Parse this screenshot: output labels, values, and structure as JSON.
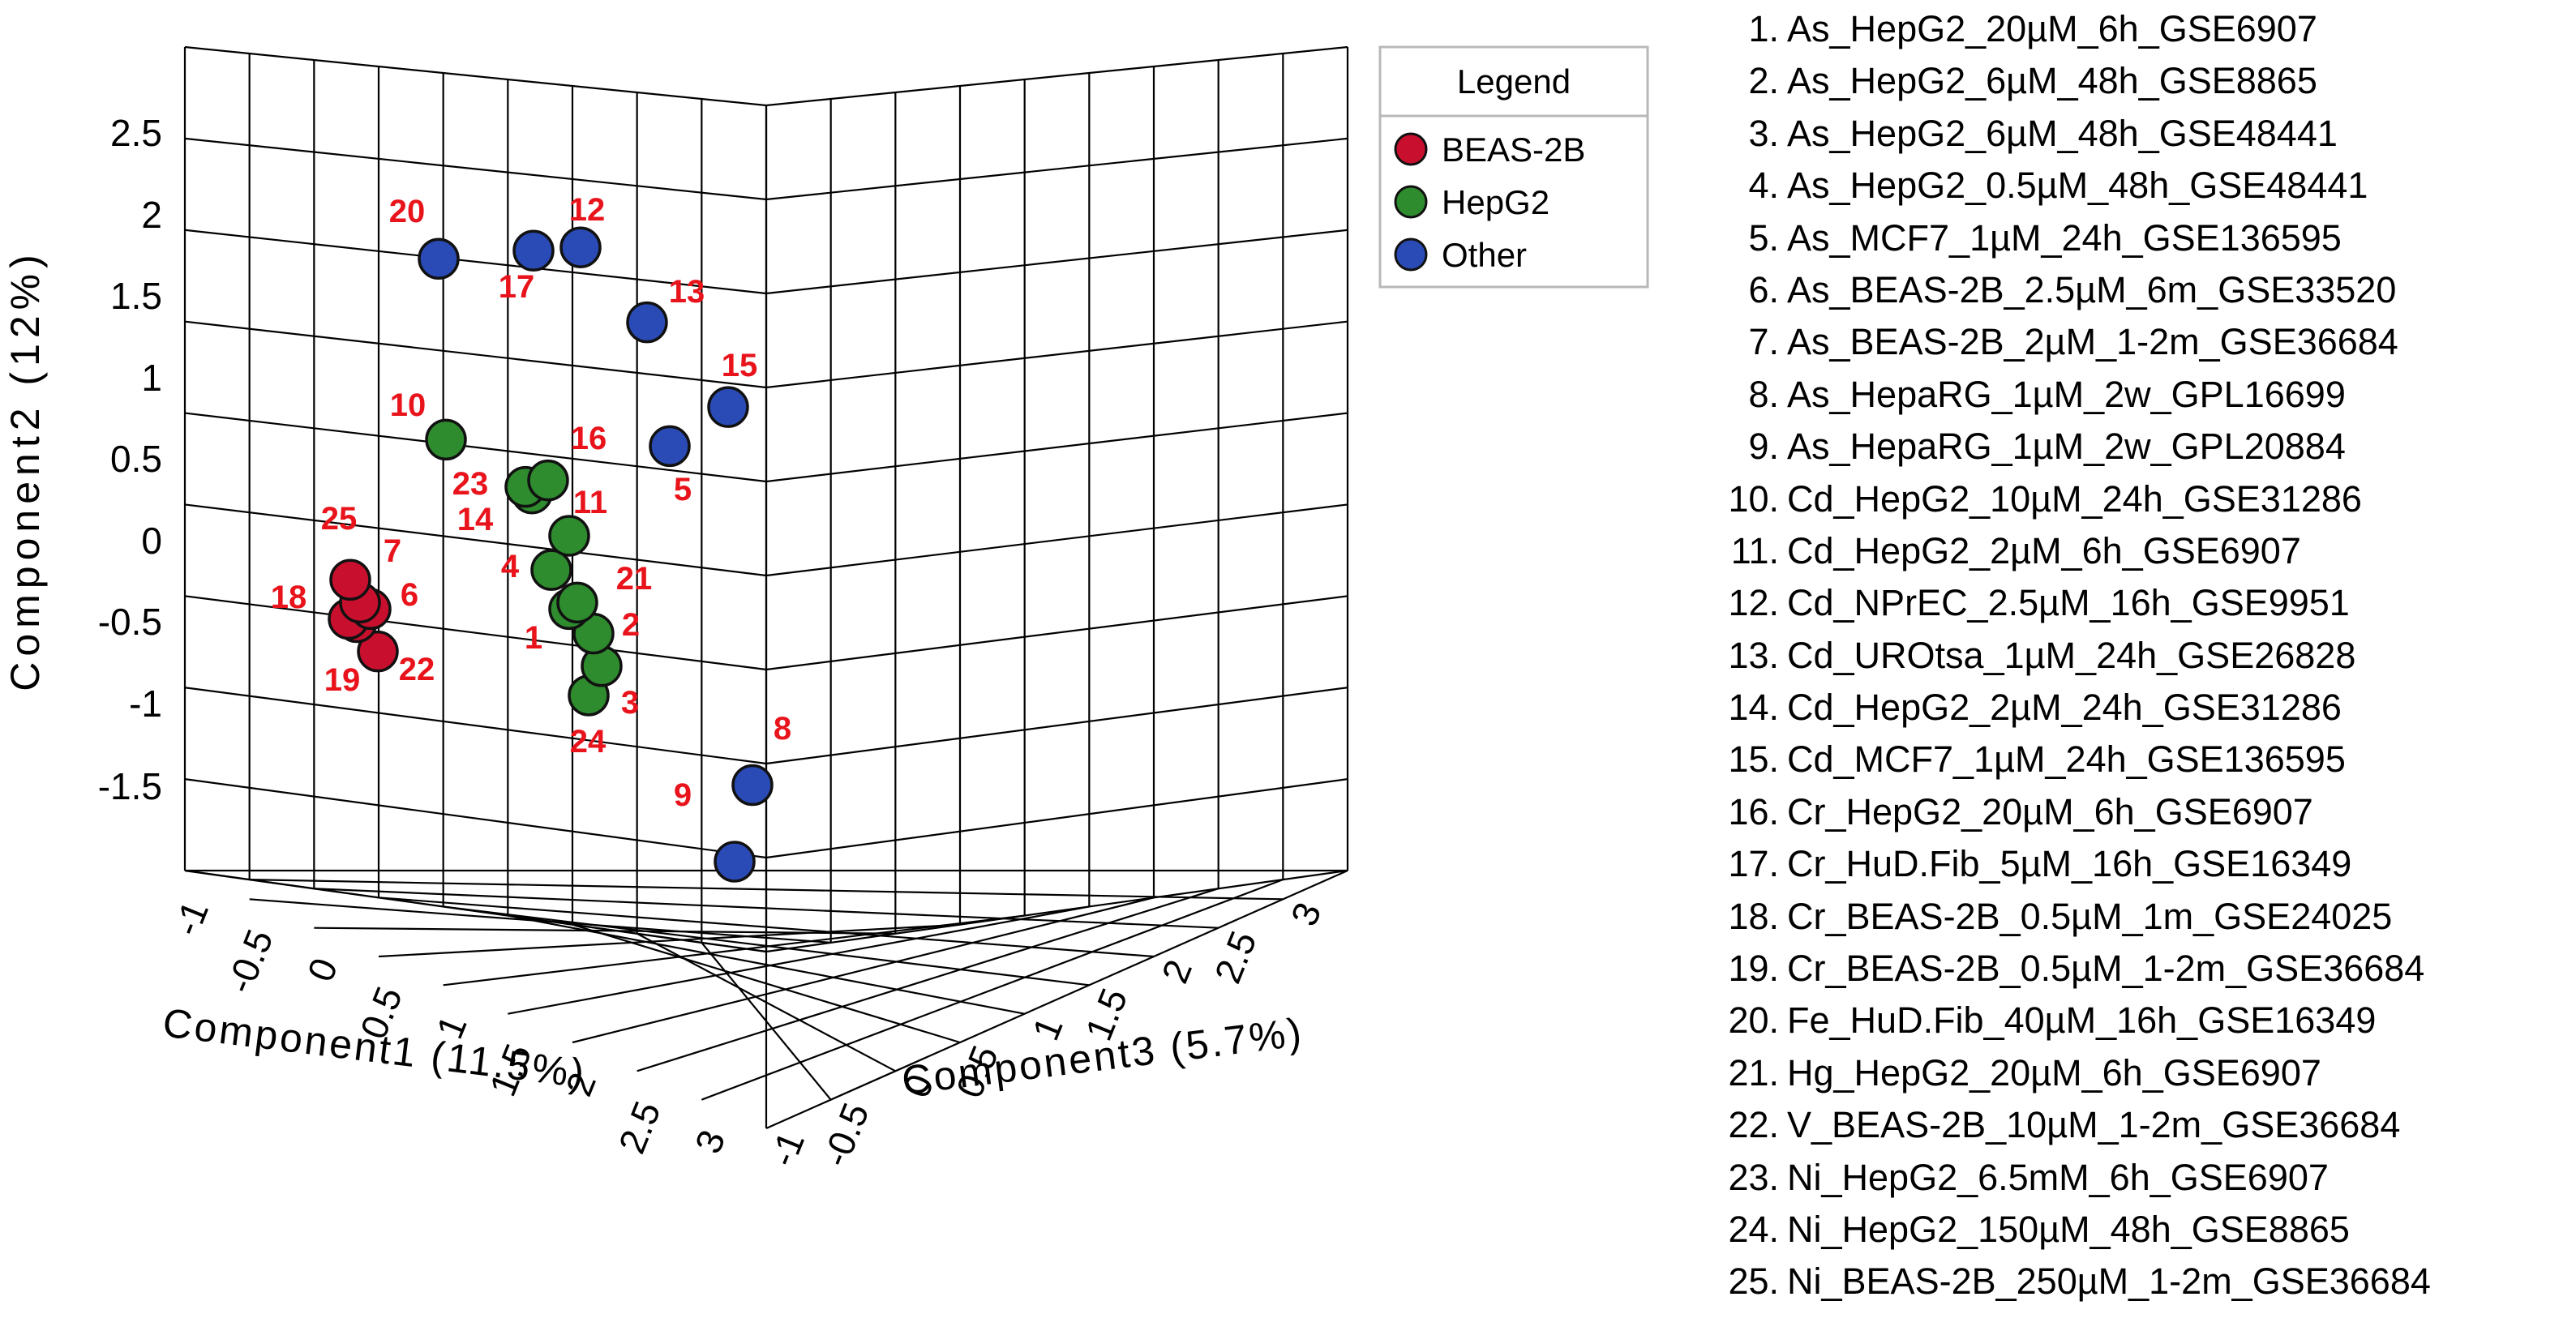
{
  "chart_data": {
    "type": "scatter",
    "projection": "3d",
    "title": "",
    "axes": {
      "x": {
        "label": "Component1 (11.5%)",
        "ticks": [
          "-1",
          "-0.5",
          "0",
          "0.5",
          "1",
          "1.5",
          "2",
          "2.5",
          "3"
        ]
      },
      "y": {
        "label": "Component2 (12%)",
        "ticks": [
          "-1.5",
          "-1",
          "-0.5",
          "0",
          "0.5",
          "1",
          "1.5",
          "2",
          "2.5"
        ]
      },
      "z": {
        "label": "Component3 (5.7%)",
        "ticks": [
          "-1",
          "-0.5",
          "0",
          "0.5",
          "1",
          "1.5",
          "2",
          "2.5",
          "3"
        ]
      }
    },
    "legend": {
      "title": "Legend",
      "placement": "top-right",
      "entries": [
        {
          "name": "BEAS-2B",
          "color": "#c8102e"
        },
        {
          "name": "HepG2",
          "color": "#2e8b2e"
        },
        {
          "name": "Other",
          "color": "#2a4bb5"
        }
      ]
    },
    "points": [
      {
        "id": "1",
        "group": "HepG2",
        "y": -0.42
      },
      {
        "id": "2",
        "group": "HepG2",
        "y": -0.57
      },
      {
        "id": "3",
        "group": "HepG2",
        "y": -0.77
      },
      {
        "id": "4",
        "group": "HepG2",
        "y": -0.18
      },
      {
        "id": "5",
        "group": "Other",
        "y": 0.58
      },
      {
        "id": "6",
        "group": "BEAS-2B",
        "y": -0.42
      },
      {
        "id": "7",
        "group": "BEAS-2B",
        "y": -0.38
      },
      {
        "id": "8",
        "group": "Other",
        "y": -1.5
      },
      {
        "id": "9",
        "group": "Other",
        "y": -1.97
      },
      {
        "id": "10",
        "group": "HepG2",
        "y": 0.62
      },
      {
        "id": "11",
        "group": "HepG2",
        "y": 0.03
      },
      {
        "id": "12",
        "group": "Other",
        "y": 1.8
      },
      {
        "id": "13",
        "group": "Other",
        "y": 1.34
      },
      {
        "id": "14",
        "group": "HepG2",
        "y": 0.29
      },
      {
        "id": "15",
        "group": "Other",
        "y": 0.82
      },
      {
        "id": "16",
        "group": "HepG2",
        "y": 0.37
      },
      {
        "id": "17",
        "group": "Other",
        "y": 1.78
      },
      {
        "id": "18",
        "group": "BEAS-2B",
        "y": -0.48
      },
      {
        "id": "19",
        "group": "BEAS-2B",
        "y": -0.5
      },
      {
        "id": "20",
        "group": "Other",
        "y": 1.73
      },
      {
        "id": "21",
        "group": "HepG2",
        "y": -0.38
      },
      {
        "id": "22",
        "group": "BEAS-2B",
        "y": -0.68
      },
      {
        "id": "23",
        "group": "HepG2",
        "y": 0.33
      },
      {
        "id": "24",
        "group": "HepG2",
        "y": -0.95
      },
      {
        "id": "25",
        "group": "BEAS-2B",
        "y": -0.24
      }
    ]
  },
  "sample_list": [
    {
      "num": "1.",
      "name": "As_HepG2_20µM_6h_GSE6907"
    },
    {
      "num": "2.",
      "name": "As_HepG2_6µM_48h_GSE8865"
    },
    {
      "num": "3.",
      "name": "As_HepG2_6µM_48h_GSE48441"
    },
    {
      "num": "4.",
      "name": "As_HepG2_0.5µM_48h_GSE48441"
    },
    {
      "num": "5.",
      "name": "As_MCF7_1µM_24h_GSE136595"
    },
    {
      "num": "6.",
      "name": "As_BEAS-2B_2.5µM_6m_GSE33520"
    },
    {
      "num": "7.",
      "name": "As_BEAS-2B_2µM_1-2m_GSE36684"
    },
    {
      "num": "8.",
      "name": "As_HepaRG_1µM_2w_GPL16699"
    },
    {
      "num": "9.",
      "name": "As_HepaRG_1µM_2w_GPL20884"
    },
    {
      "num": "10.",
      "name": "Cd_HepG2_10µM_24h_GSE31286"
    },
    {
      "num": "11.",
      "name": "Cd_HepG2_2µM_6h_GSE6907"
    },
    {
      "num": "12.",
      "name": "Cd_NPrEC_2.5µM_16h_GSE9951"
    },
    {
      "num": "13.",
      "name": "Cd_UROtsa_1µM_24h_GSE26828"
    },
    {
      "num": "14.",
      "name": "Cd_HepG2_2µM_24h_GSE31286"
    },
    {
      "num": "15.",
      "name": "Cd_MCF7_1µM_24h_GSE136595"
    },
    {
      "num": "16.",
      "name": "Cr_HepG2_20µM_6h_GSE6907"
    },
    {
      "num": "17.",
      "name": "Cr_HuD.Fib_5µM_16h_GSE16349"
    },
    {
      "num": "18.",
      "name": "Cr_BEAS-2B_0.5µM_1m_GSE24025"
    },
    {
      "num": "19.",
      "name": "Cr_BEAS-2B_0.5µM_1-2m_GSE36684"
    },
    {
      "num": "20.",
      "name": "Fe_HuD.Fib_40µM_16h_GSE16349"
    },
    {
      "num": "21.",
      "name": "Hg_HepG2_20µM_6h_GSE6907"
    },
    {
      "num": "22.",
      "name": "V_BEAS-2B_10µM_1-2m_GSE36684"
    },
    {
      "num": "23.",
      "name": "Ni_HepG2_6.5mM_6h_GSE6907"
    },
    {
      "num": "24.",
      "name": "Ni_HepG2_150µM_48h_GSE8865"
    },
    {
      "num": "25.",
      "name": "Ni_BEAS-2B_250µM_1-2m_GSE36684"
    }
  ]
}
